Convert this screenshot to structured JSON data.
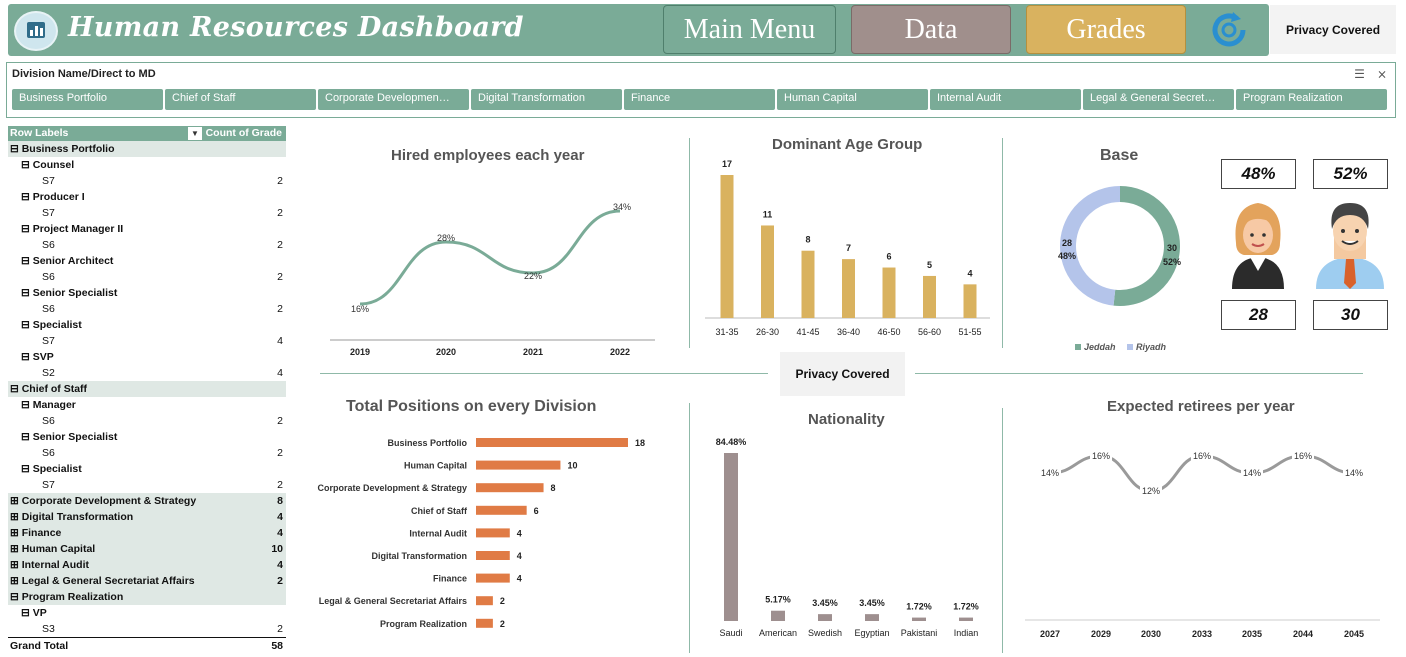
{
  "header": {
    "title": "Human Resources Dashboard",
    "privacy": "Privacy Covered"
  },
  "nav": [
    {
      "label": "Main Menu",
      "color": "#7aab97"
    },
    {
      "label": "Data",
      "color": "#a08f8c"
    },
    {
      "label": "Grades",
      "color": "#d9b25f"
    }
  ],
  "slicer": {
    "title": "Division Name/Direct to MD",
    "items": [
      "Business Portfolio",
      "Chief of Staff",
      "Corporate Developmen…",
      "Digital Transformation",
      "Finance",
      "Human Capital",
      "Internal Audit",
      "Legal & General Secret…",
      "Program Realization"
    ]
  },
  "pivot": {
    "col1": "Row Labels",
    "col2": "Count of Grade",
    "rows": [
      {
        "t": "⊟ Business Portfolio",
        "v": "",
        "lvl": 0,
        "shade": true,
        "bold": true
      },
      {
        "t": "⊟ Counsel",
        "v": "",
        "lvl": 1,
        "bold": true
      },
      {
        "t": "S7",
        "v": "2",
        "lvl": 2
      },
      {
        "t": "⊟ Producer I",
        "v": "",
        "lvl": 1,
        "bold": true
      },
      {
        "t": "S7",
        "v": "2",
        "lvl": 2
      },
      {
        "t": "⊟ Project Manager II",
        "v": "",
        "lvl": 1,
        "bold": true
      },
      {
        "t": "S6",
        "v": "2",
        "lvl": 2
      },
      {
        "t": "⊟ Senior Architect",
        "v": "",
        "lvl": 1,
        "bold": true
      },
      {
        "t": "S6",
        "v": "2",
        "lvl": 2
      },
      {
        "t": "⊟ Senior Specialist",
        "v": "",
        "lvl": 1,
        "bold": true
      },
      {
        "t": "S6",
        "v": "2",
        "lvl": 2
      },
      {
        "t": "⊟ Specialist",
        "v": "",
        "lvl": 1,
        "bold": true
      },
      {
        "t": "S7",
        "v": "4",
        "lvl": 2
      },
      {
        "t": "⊟ SVP",
        "v": "",
        "lvl": 1,
        "bold": true
      },
      {
        "t": "S2",
        "v": "4",
        "lvl": 2
      },
      {
        "t": "⊟ Chief of Staff",
        "v": "",
        "lvl": 0,
        "shade": true,
        "bold": true
      },
      {
        "t": "⊟ Manager",
        "v": "",
        "lvl": 1,
        "bold": true
      },
      {
        "t": "S6",
        "v": "2",
        "lvl": 2
      },
      {
        "t": "⊟ Senior Specialist",
        "v": "",
        "lvl": 1,
        "bold": true
      },
      {
        "t": "S6",
        "v": "2",
        "lvl": 2
      },
      {
        "t": "⊟ Specialist",
        "v": "",
        "lvl": 1,
        "bold": true
      },
      {
        "t": "S7",
        "v": "2",
        "lvl": 2
      },
      {
        "t": "⊞ Corporate Development & Strategy",
        "v": "8",
        "lvl": 0,
        "shade": true,
        "bold": true
      },
      {
        "t": "⊞ Digital Transformation",
        "v": "4",
        "lvl": 0,
        "shade": true,
        "bold": true
      },
      {
        "t": "⊞ Finance",
        "v": "4",
        "lvl": 0,
        "shade": true,
        "bold": true
      },
      {
        "t": "⊞ Human Capital",
        "v": "10",
        "lvl": 0,
        "shade": true,
        "bold": true
      },
      {
        "t": "⊞ Internal Audit",
        "v": "4",
        "lvl": 0,
        "shade": true,
        "bold": true
      },
      {
        "t": "⊞ Legal & General Secretariat Affairs",
        "v": "2",
        "lvl": 0,
        "shade": true,
        "bold": true
      },
      {
        "t": "⊟ Program Realization",
        "v": "",
        "lvl": 0,
        "shade": true,
        "bold": true
      },
      {
        "t": "⊟ VP",
        "v": "",
        "lvl": 1,
        "bold": true
      },
      {
        "t": "S3",
        "v": "2",
        "lvl": 2
      }
    ],
    "total_label": "Grand Total",
    "total": "58"
  },
  "privacy_mid": "Privacy Covered",
  "gender": {
    "female_pct": "48%",
    "male_pct": "52%",
    "female_count": "28",
    "male_count": "30"
  },
  "chart_data": [
    {
      "id": "hired",
      "type": "line",
      "title": "Hired employees each year",
      "x": [
        "2019",
        "2020",
        "2021",
        "2022"
      ],
      "values": [
        16,
        28,
        22,
        34
      ],
      "labels": [
        "16%",
        "28%",
        "22%",
        "34%"
      ],
      "color": "#7aab97"
    },
    {
      "id": "age",
      "type": "bar",
      "title": "Dominant Age Group",
      "categories": [
        "31-35",
        "26-30",
        "41-45",
        "36-40",
        "46-50",
        "56-60",
        "51-55"
      ],
      "values": [
        17,
        11,
        8,
        7,
        6,
        5,
        4
      ],
      "color": "#d9b25f"
    },
    {
      "id": "base",
      "type": "pie",
      "title": "Base",
      "categories": [
        "Jeddah",
        "Riyadh"
      ],
      "values": [
        30,
        28
      ],
      "pct": [
        "52%",
        "48%"
      ],
      "colors": [
        "#7aab97",
        "#b4c4ea"
      ]
    },
    {
      "id": "positions",
      "type": "bar",
      "title": "Total Positions on every Division",
      "categories": [
        "Business Portfolio",
        "Human Capital",
        "Corporate Development & Strategy",
        "Chief of Staff",
        "Internal Audit",
        "Digital Transformation",
        "Finance",
        "Legal & General Secretariat Affairs",
        "Program Realization"
      ],
      "values": [
        18,
        10,
        8,
        6,
        4,
        4,
        4,
        2,
        2
      ],
      "color": "#e07b45"
    },
    {
      "id": "nationality",
      "type": "bar",
      "title": "Nationality",
      "categories": [
        "Saudi",
        "American",
        "Swedish",
        "Egyptian",
        "Pakistani",
        "Indian"
      ],
      "values": [
        84.48,
        5.17,
        3.45,
        3.45,
        1.72,
        1.72
      ],
      "labels": [
        "84.48%",
        "5.17%",
        "3.45%",
        "3.45%",
        "1.72%",
        "1.72%"
      ],
      "color": "#9e8f8f"
    },
    {
      "id": "retirees",
      "type": "line",
      "title": "Expected retirees per year",
      "x": [
        "2027",
        "2029",
        "2030",
        "2033",
        "2035",
        "2044",
        "2045"
      ],
      "values": [
        14,
        16,
        12,
        16,
        14,
        16,
        14
      ],
      "labels": [
        "14%",
        "16%",
        "12%",
        "16%",
        "14%",
        "16%",
        "14%"
      ],
      "color": "#9a9a9a"
    }
  ]
}
